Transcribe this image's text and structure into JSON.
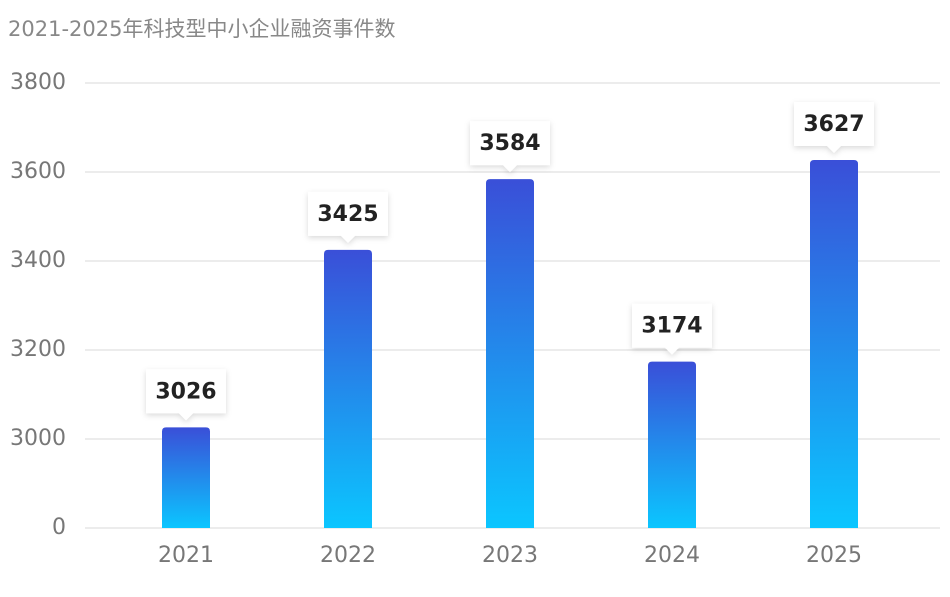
{
  "chart_data": {
    "type": "bar",
    "title": "2021-2025年科技型中小企业融资事件数",
    "categories": [
      "2021",
      "2022",
      "2023",
      "2024",
      "2025"
    ],
    "values": [
      3026,
      3425,
      3584,
      3174,
      3627
    ],
    "color_top": "#3a4fd8",
    "color_bottom": "#0bc6ff",
    "ylim": [
      0,
      3800
    ],
    "yticks": [
      0,
      3000,
      3200,
      3400,
      3600,
      3800
    ],
    "grid": true
  }
}
